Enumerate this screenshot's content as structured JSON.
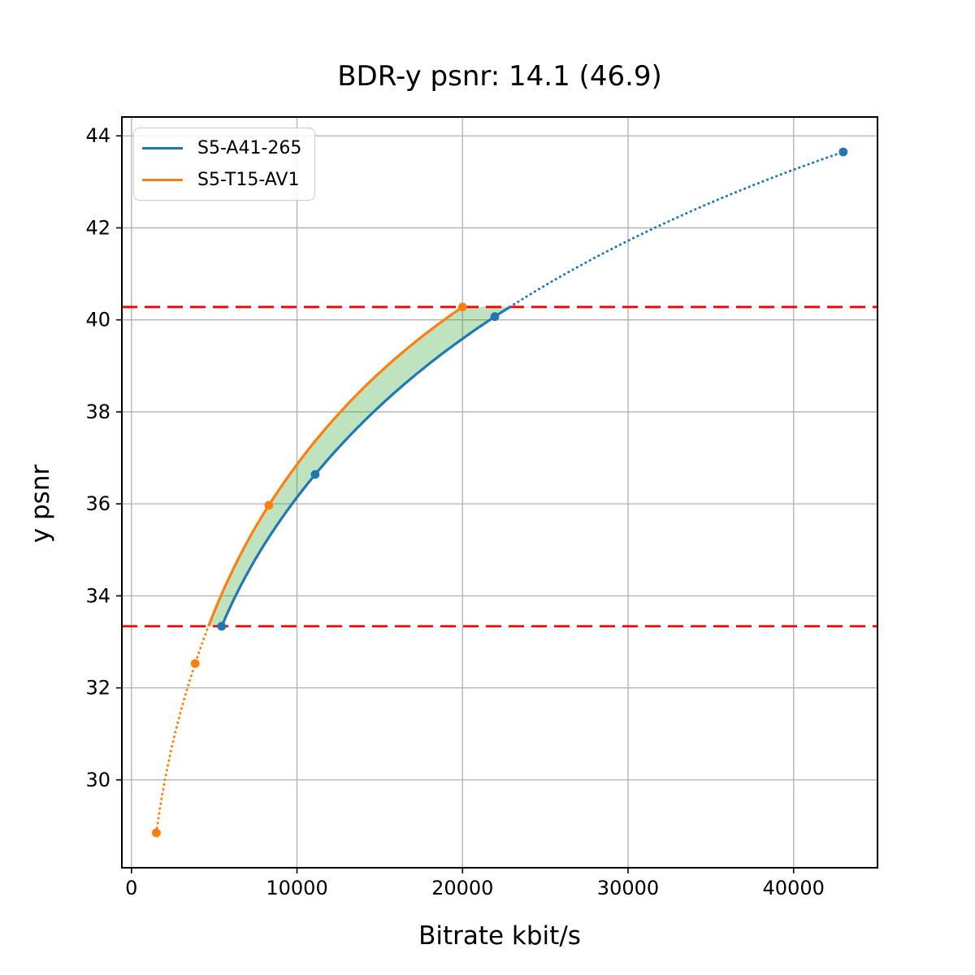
{
  "chart_data": {
    "type": "line",
    "title": "BDR-y psnr: 14.1 (46.9)",
    "xlabel": "Bitrate kbit/s",
    "ylabel": "y psnr",
    "xlim": [
      -580,
      45070
    ],
    "ylim": [
      28.09,
      44.41
    ],
    "x_ticks": [
      0,
      10000,
      20000,
      30000,
      40000
    ],
    "x_tick_labels": [
      "0",
      "10000",
      "20000",
      "30000",
      "40000"
    ],
    "y_ticks": [
      30,
      32,
      34,
      36,
      38,
      40,
      42,
      44
    ],
    "y_tick_labels": [
      "30",
      "32",
      "34",
      "36",
      "38",
      "40",
      "42",
      "44"
    ],
    "grid": true,
    "grid_color": "#b0b0b0",
    "legend_position": "upper left",
    "series": [
      {
        "name": "S5-A41-265",
        "color": "#1f77b4",
        "points": [
          [
            5450,
            33.34
          ],
          [
            11100,
            36.64
          ],
          [
            21950,
            40.07
          ],
          [
            43000,
            43.65
          ]
        ],
        "style_note": "solid within overlap quality range, dotted above upper reference line"
      },
      {
        "name": "S5-T15-AV1",
        "color": "#ff7f0e",
        "points": [
          [
            1500,
            28.85
          ],
          [
            3850,
            32.53
          ],
          [
            8300,
            35.97
          ],
          [
            20000,
            40.28
          ]
        ],
        "style_note": "dotted below lower reference line, solid within overlap quality range"
      }
    ],
    "reference_lines": {
      "color": "#ff0000",
      "style": "dashed",
      "values": [
        33.34,
        40.28
      ],
      "note": "horizontal lines at overlap psnr bounds"
    },
    "shaded_region": {
      "color": "#2ca02c",
      "alpha": 0.3,
      "between": "the two rate-distortion curves over the overlapping quality range 33.34 to 40.28"
    }
  }
}
